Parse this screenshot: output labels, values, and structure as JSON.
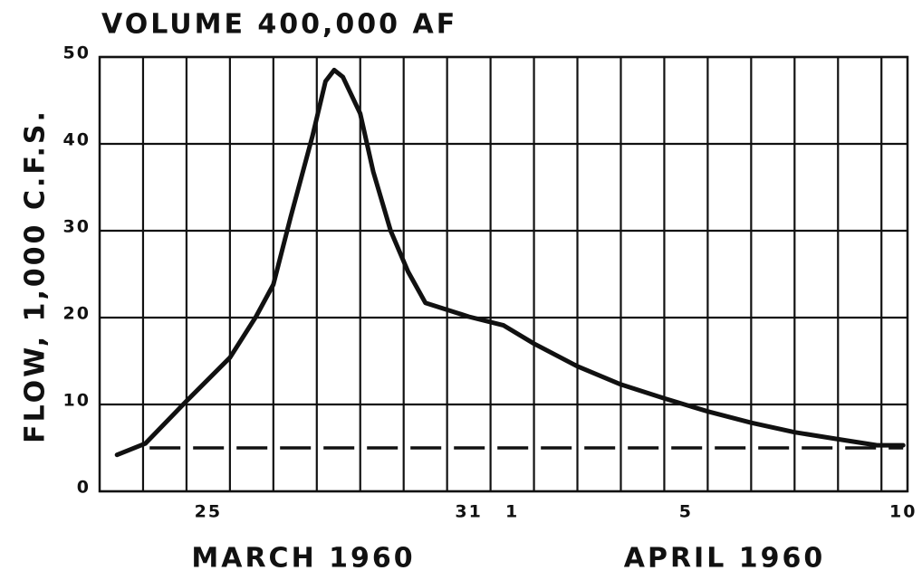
{
  "chart_data": {
    "type": "line",
    "title": "VOLUME 400,000 AF",
    "ylabel": "FLOW, 1,000 C.F.S.",
    "annotations": [
      "MARCH 1960",
      "APRIL 1960"
    ],
    "xlim": [
      22.5,
      41.1
    ],
    "xticks": [
      25,
      31,
      {
        "value": 32,
        "label": "1"
      },
      {
        "value": 36,
        "label": "5"
      },
      {
        "value": 41,
        "label": "10"
      }
    ],
    "xgrid": [
      23.5,
      24.5,
      25.5,
      26.5,
      27.5,
      28.5,
      29.5,
      30.5,
      31.5,
      32.5,
      33.5,
      34.5,
      35.5,
      36.5,
      37.5,
      38.5,
      39.5,
      40.5
    ],
    "ylim": [
      0,
      50
    ],
    "yticks": [
      0,
      10,
      20,
      30,
      40,
      50
    ],
    "grid": true,
    "series": [
      {
        "color": "#111111",
        "dash": false,
        "x": [
          22.9,
          23.55,
          24.5,
          25.5,
          26.1,
          26.5,
          26.9,
          27.4,
          27.7,
          27.9,
          28.1,
          28.5,
          28.8,
          29.2,
          29.6,
          30.0,
          31.0,
          31.8,
          32.5,
          33.5,
          34.5,
          35.5,
          36.5,
          37.5,
          38.5,
          39.5,
          40.4,
          41.0
        ],
        "values": [
          4.2,
          5.5,
          10.4,
          15.4,
          20.1,
          23.8,
          31.6,
          40.9,
          47.2,
          48.5,
          47.7,
          43.5,
          36.8,
          30,
          25.3,
          21.7,
          20.1,
          19.1,
          17,
          14.4,
          12.3,
          10.7,
          9.2,
          7.9,
          6.8,
          6,
          5.3,
          5.3
        ]
      },
      {
        "color": "#111111",
        "dash": true,
        "x": [
          23.65,
          41.0
        ],
        "values": [
          5,
          5
        ]
      }
    ]
  }
}
